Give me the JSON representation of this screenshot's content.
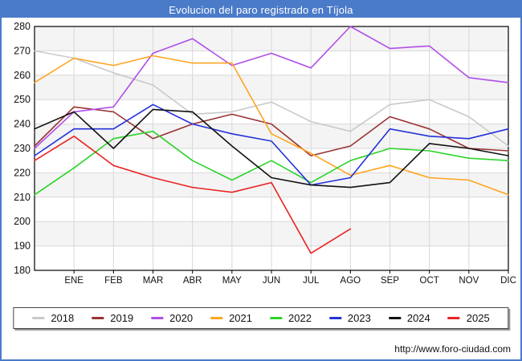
{
  "title": "Evolucion del paro registrado en Tíjola",
  "footer_url": "http://www.foro-ciudad.com",
  "colors": {
    "frame_blue": "#4a7bc9",
    "title_text": "#ffffff",
    "grid": "#d8d8d8",
    "band": "#f4f4f4",
    "axis_box": "#000000",
    "tick_text": "#111111"
  },
  "chart_data": {
    "type": "line",
    "title": "Evolucion del paro registrado en Tíjola",
    "xlabel": "",
    "ylabel": "",
    "ylim": [
      180,
      280
    ],
    "y_ticks": [
      180,
      190,
      200,
      210,
      220,
      230,
      240,
      250,
      260,
      270,
      280
    ],
    "x_tick_labels": [
      "ENE",
      "FEB",
      "MAR",
      "ABR",
      "MAY",
      "JUN",
      "JUL",
      "AGO",
      "SEP",
      "OCT",
      "NOV",
      "DIC"
    ],
    "grid": true,
    "striped_bands": true,
    "legend_position": "bottom",
    "layout_note": "each series has an extra starting vertex drawn on the y-axis before the ENE tick",
    "series": [
      {
        "name": "2018",
        "color": "#c9c9c9",
        "values": [
          270,
          267,
          261,
          256,
          244,
          245,
          249,
          241,
          237,
          248,
          250,
          243,
          231
        ]
      },
      {
        "name": "2019",
        "color": "#993333",
        "values": [
          231,
          247,
          245,
          234,
          240,
          244,
          240,
          227,
          231,
          243,
          238,
          230,
          229
        ]
      },
      {
        "name": "2020",
        "color": "#b04ee8",
        "values": [
          230,
          245,
          247,
          269,
          275,
          264,
          269,
          263,
          280,
          271,
          272,
          259,
          257
        ]
      },
      {
        "name": "2021",
        "color": "#ffa41e",
        "values": [
          257,
          267,
          264,
          268,
          265,
          265,
          236,
          228,
          219,
          223,
          218,
          217,
          211
        ]
      },
      {
        "name": "2022",
        "color": "#2bd42b",
        "values": [
          211,
          222,
          234,
          237,
          225,
          217,
          225,
          216,
          225,
          230,
          229,
          226,
          225
        ]
      },
      {
        "name": "2023",
        "color": "#2431d8",
        "values": [
          227,
          238,
          238,
          248,
          240,
          236,
          233,
          215,
          218,
          238,
          235,
          234,
          238
        ]
      },
      {
        "name": "2024",
        "color": "#111111",
        "values": [
          238,
          245,
          230,
          246,
          245,
          231,
          218,
          215,
          214,
          216,
          232,
          230,
          227
        ]
      },
      {
        "name": "2025",
        "color": "#ea2323",
        "values": [
          225,
          235,
          223,
          218,
          214,
          212,
          216,
          187,
          197
        ]
      }
    ]
  }
}
